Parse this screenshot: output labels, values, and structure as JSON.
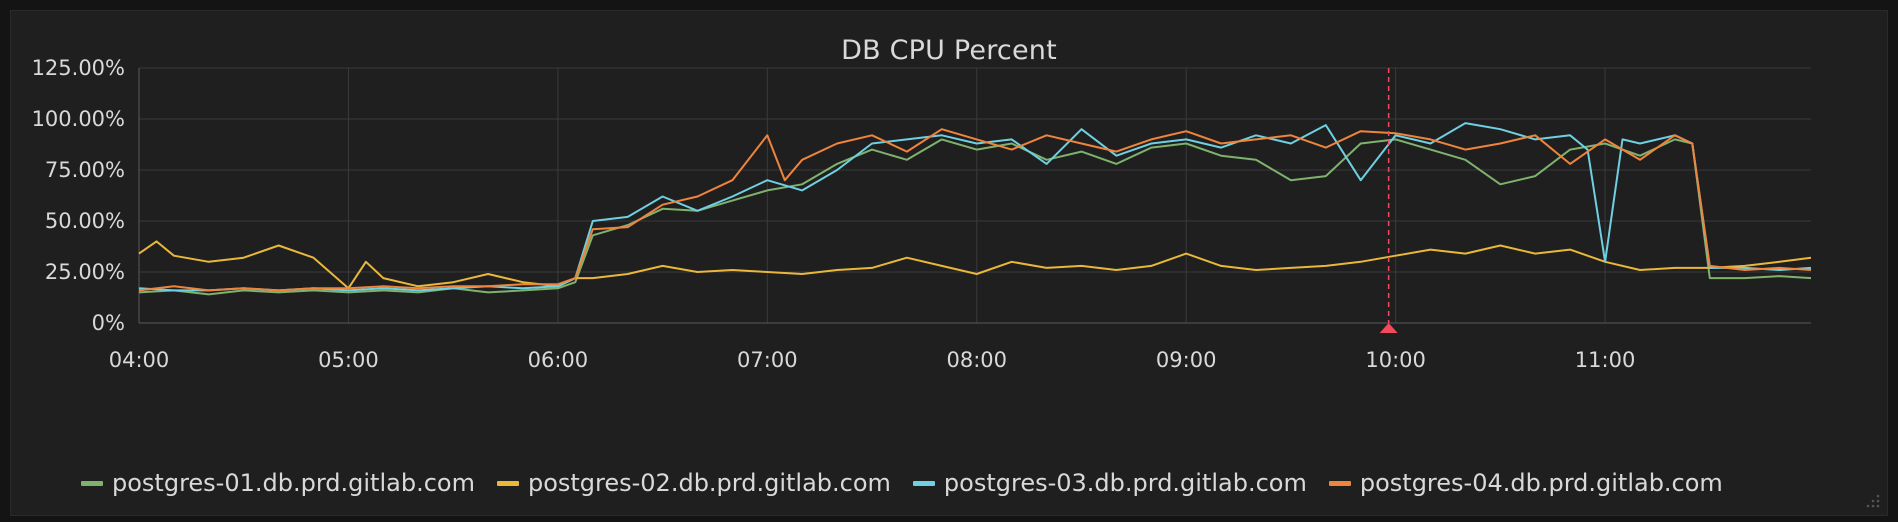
{
  "panel": {
    "title": "DB CPU Percent"
  },
  "chart_data": {
    "type": "line",
    "title": "DB CPU Percent",
    "xlabel": "",
    "ylabel": "",
    "x_ticks": [
      "04:00",
      "05:00",
      "06:00",
      "07:00",
      "08:00",
      "09:00",
      "10:00",
      "11:00"
    ],
    "y_ticks": [
      "0%",
      "25.00%",
      "50.00%",
      "75.00%",
      "100.00%",
      "125.00%"
    ],
    "xlim": [
      "04:00",
      "11:59"
    ],
    "ylim": [
      0,
      125
    ],
    "grid": true,
    "legend_position": "bottom",
    "annotation": {
      "time": "09:58",
      "color": "#f2495c"
    },
    "series": [
      {
        "name": "postgres-01.db.prd.gitlab.com",
        "color": "#7eb26d",
        "x": [
          "04:00",
          "04:10",
          "04:20",
          "04:30",
          "04:40",
          "04:50",
          "05:00",
          "05:10",
          "05:20",
          "05:30",
          "05:40",
          "05:50",
          "06:00",
          "06:05",
          "06:10",
          "06:20",
          "06:30",
          "06:40",
          "06:50",
          "07:00",
          "07:10",
          "07:20",
          "07:30",
          "07:40",
          "07:50",
          "08:00",
          "08:10",
          "08:20",
          "08:30",
          "08:40",
          "08:50",
          "09:00",
          "09:10",
          "09:20",
          "09:30",
          "09:40",
          "09:50",
          "10:00",
          "10:10",
          "10:20",
          "10:30",
          "10:40",
          "10:50",
          "11:00",
          "11:10",
          "11:20",
          "11:25",
          "11:30",
          "11:40",
          "11:50",
          "11:59"
        ],
        "values": [
          15,
          16,
          14,
          16,
          15,
          16,
          15,
          16,
          15,
          17,
          15,
          16,
          17,
          20,
          43,
          48,
          56,
          55,
          60,
          65,
          68,
          78,
          85,
          80,
          90,
          85,
          88,
          80,
          84,
          78,
          86,
          88,
          82,
          80,
          70,
          72,
          88,
          90,
          85,
          80,
          68,
          72,
          85,
          88,
          82,
          90,
          88,
          22,
          22,
          23,
          22
        ]
      },
      {
        "name": "postgres-02.db.prd.gitlab.com",
        "color": "#eab839",
        "x": [
          "04:00",
          "04:05",
          "04:10",
          "04:20",
          "04:30",
          "04:40",
          "04:50",
          "05:00",
          "05:05",
          "05:10",
          "05:20",
          "05:30",
          "05:40",
          "05:50",
          "06:00",
          "06:05",
          "06:10",
          "06:20",
          "06:30",
          "06:40",
          "06:50",
          "07:00",
          "07:10",
          "07:20",
          "07:30",
          "07:40",
          "07:50",
          "08:00",
          "08:10",
          "08:20",
          "08:30",
          "08:40",
          "08:50",
          "09:00",
          "09:10",
          "09:20",
          "09:30",
          "09:40",
          "09:50",
          "10:00",
          "10:10",
          "10:20",
          "10:30",
          "10:40",
          "10:50",
          "11:00",
          "11:10",
          "11:20",
          "11:30",
          "11:40",
          "11:50",
          "11:59"
        ],
        "values": [
          34,
          40,
          33,
          30,
          32,
          38,
          32,
          17,
          30,
          22,
          18,
          20,
          24,
          20,
          18,
          22,
          22,
          24,
          28,
          25,
          26,
          25,
          24,
          26,
          27,
          32,
          28,
          24,
          30,
          27,
          28,
          26,
          28,
          34,
          28,
          26,
          27,
          28,
          30,
          33,
          36,
          34,
          38,
          34,
          36,
          30,
          26,
          27,
          27,
          28,
          30,
          32
        ]
      },
      {
        "name": "postgres-03.db.prd.gitlab.com",
        "color": "#6ed0e0",
        "x": [
          "04:00",
          "04:10",
          "04:20",
          "04:30",
          "04:40",
          "04:50",
          "05:00",
          "05:10",
          "05:20",
          "05:30",
          "05:40",
          "05:50",
          "06:00",
          "06:05",
          "06:10",
          "06:20",
          "06:30",
          "06:40",
          "06:50",
          "07:00",
          "07:10",
          "07:20",
          "07:30",
          "07:40",
          "07:50",
          "08:00",
          "08:10",
          "08:20",
          "08:30",
          "08:40",
          "08:50",
          "09:00",
          "09:10",
          "09:20",
          "09:30",
          "09:40",
          "09:50",
          "10:00",
          "10:05",
          "10:10",
          "10:20",
          "10:30",
          "10:40",
          "10:50",
          "10:55",
          "11:00",
          "11:05",
          "11:10",
          "11:20",
          "11:25",
          "11:30",
          "11:40",
          "11:50",
          "11:59"
        ],
        "values": [
          17,
          16,
          16,
          17,
          16,
          17,
          16,
          17,
          16,
          17,
          18,
          17,
          18,
          22,
          50,
          52,
          62,
          55,
          62,
          70,
          65,
          75,
          88,
          90,
          92,
          88,
          90,
          78,
          95,
          82,
          88,
          90,
          86,
          92,
          88,
          97,
          70,
          92,
          90,
          88,
          98,
          95,
          90,
          92,
          85,
          30,
          90,
          88,
          92,
          88,
          27,
          27,
          26,
          27
        ]
      },
      {
        "name": "postgres-04.db.prd.gitlab.com",
        "color": "#ef843c",
        "x": [
          "04:00",
          "04:10",
          "04:20",
          "04:30",
          "04:40",
          "04:50",
          "05:00",
          "05:10",
          "05:20",
          "05:30",
          "05:40",
          "05:50",
          "06:00",
          "06:05",
          "06:10",
          "06:20",
          "06:30",
          "06:40",
          "06:50",
          "07:00",
          "07:05",
          "07:10",
          "07:20",
          "07:30",
          "07:40",
          "07:50",
          "08:00",
          "08:10",
          "08:20",
          "08:30",
          "08:40",
          "08:50",
          "09:00",
          "09:10",
          "09:20",
          "09:30",
          "09:40",
          "09:50",
          "10:00",
          "10:10",
          "10:20",
          "10:30",
          "10:40",
          "10:50",
          "11:00",
          "11:10",
          "11:20",
          "11:25",
          "11:30",
          "11:40",
          "11:50",
          "11:59"
        ],
        "values": [
          16,
          18,
          16,
          17,
          16,
          17,
          17,
          18,
          17,
          18,
          18,
          19,
          19,
          22,
          46,
          47,
          58,
          62,
          70,
          92,
          70,
          80,
          88,
          92,
          84,
          95,
          90,
          85,
          92,
          88,
          84,
          90,
          94,
          88,
          90,
          92,
          86,
          94,
          93,
          90,
          85,
          88,
          92,
          78,
          90,
          80,
          92,
          88,
          28,
          26,
          27,
          26
        ]
      }
    ]
  }
}
